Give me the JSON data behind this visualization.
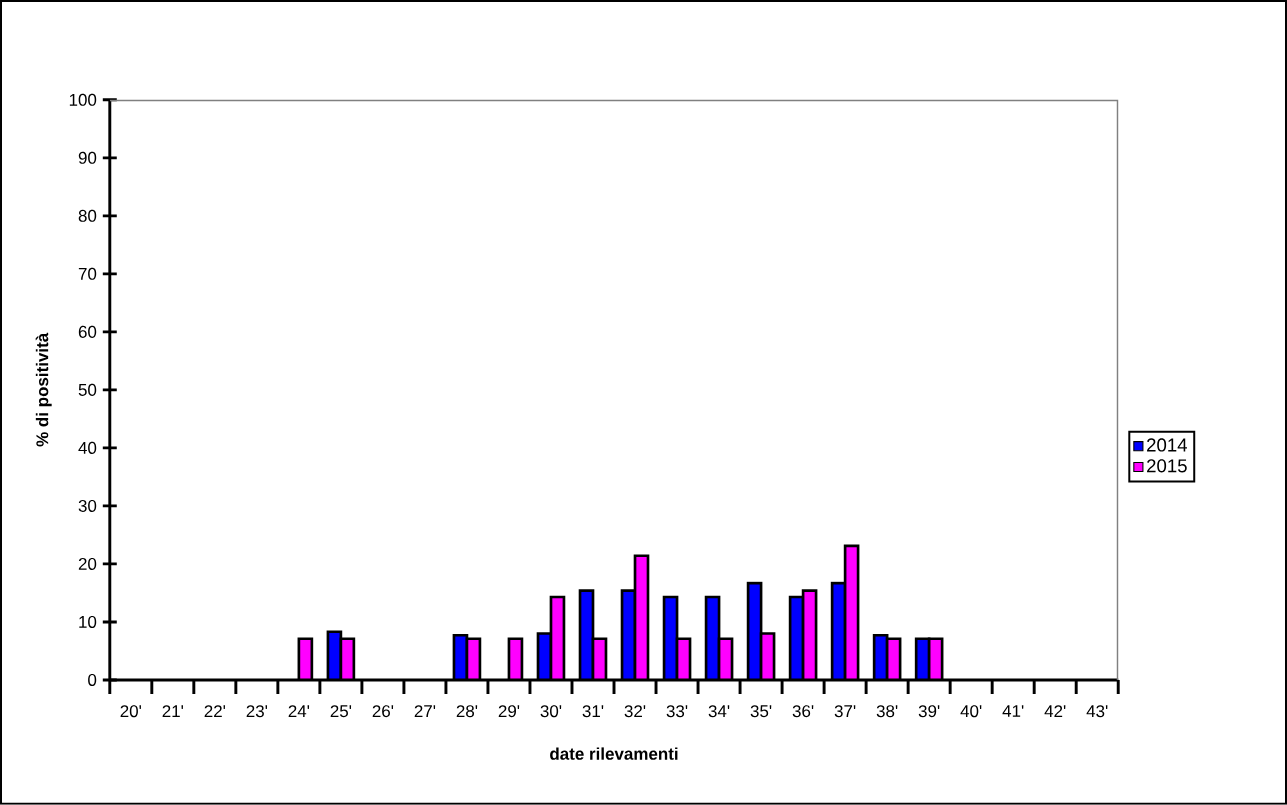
{
  "chart_data": {
    "type": "bar",
    "xlabel": "date rilevamenti",
    "ylabel": "% di positività",
    "categories": [
      "20'",
      "21'",
      "22'",
      "23'",
      "24'",
      "25'",
      "26'",
      "27'",
      "28'",
      "29'",
      "30'",
      "31'",
      "32'",
      "33'",
      "34'",
      "35'",
      "36'",
      "37'",
      "38'",
      "39'",
      "40'",
      "41'",
      "42'",
      "43'"
    ],
    "series": [
      {
        "name": "2014",
        "color": "#0000ff",
        "values": [
          null,
          null,
          null,
          null,
          null,
          8.3,
          null,
          null,
          7.7,
          null,
          8.0,
          15.4,
          15.4,
          14.3,
          14.3,
          16.7,
          14.3,
          16.7,
          7.7,
          7.1,
          null,
          null,
          null,
          null
        ]
      },
      {
        "name": "2015",
        "color": "#ff00ff",
        "values": [
          null,
          null,
          null,
          null,
          7.1,
          7.1,
          null,
          null,
          7.1,
          7.1,
          14.3,
          7.1,
          21.4,
          7.1,
          7.1,
          8.0,
          15.4,
          23.1,
          7.1,
          7.1,
          null,
          null,
          null,
          null
        ]
      }
    ],
    "ylim": [
      0,
      100
    ],
    "yticks": [
      0,
      10,
      20,
      30,
      40,
      50,
      60,
      70,
      80,
      90,
      100
    ],
    "legend": "right",
    "grid": false
  }
}
